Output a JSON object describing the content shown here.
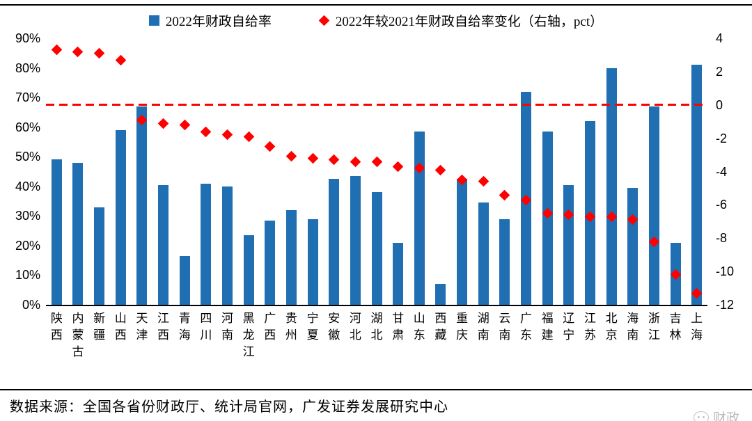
{
  "legend": {
    "bars": "2022年财政自给率",
    "diamonds": "2022年较2021年财政自给率变化（右轴，pct）"
  },
  "source_note": "数据来源：全国各省份财政厅、统计局官网，广发证券发展研究中心",
  "watermark": {
    "label": "财政"
  },
  "colors": {
    "bar": "#1F6FB2",
    "diamond": "#FF0000",
    "reference_line": "#FF0000",
    "axis_line": "#000000",
    "text": "#000000"
  },
  "chart_data": {
    "type": "bar",
    "title": "",
    "grid": false,
    "legend_position": "top",
    "categories": [
      "陕西",
      "内蒙古",
      "新疆",
      "山西",
      "天津",
      "江西",
      "青海",
      "四川",
      "河南",
      "黑龙江",
      "广西",
      "贵州",
      "宁夏",
      "安徽",
      "河北",
      "湖北",
      "甘肃",
      "山东",
      "西藏",
      "重庆",
      "湖南",
      "云南",
      "广东",
      "福建",
      "辽宁",
      "江苏",
      "北京",
      "海南",
      "浙江",
      "吉林",
      "上海"
    ],
    "series": [
      {
        "name": "2022年财政自给率",
        "type": "bar",
        "axis": "left",
        "unit": "%",
        "values": [
          49,
          48,
          33,
          59,
          67,
          40.5,
          16.5,
          41,
          40,
          23.5,
          28.5,
          32,
          29,
          42.5,
          43.5,
          38,
          21,
          58.5,
          7,
          42.5,
          34.5,
          29,
          72,
          58.5,
          40.5,
          62,
          80,
          39.5,
          67,
          21,
          81
        ]
      },
      {
        "name": "2022年较2021年财政自给率变化（右轴，pct）",
        "type": "scatter",
        "axis": "right",
        "unit": "pct",
        "values": [
          3.3,
          3.2,
          3.1,
          2.7,
          -0.9,
          -1.1,
          -1.2,
          -1.6,
          -1.8,
          -1.9,
          -2.5,
          -3.1,
          -3.2,
          -3.3,
          -3.4,
          -3.4,
          -3.7,
          -3.8,
          -3.9,
          -4.5,
          -4.6,
          -5.4,
          -5.7,
          -6.5,
          -6.6,
          -6.7,
          -6.7,
          -6.9,
          -8.2,
          -10.2,
          -11.3
        ]
      }
    ],
    "left_axis": {
      "min": 0,
      "max": 90,
      "ticks": [
        "90%",
        "80%",
        "70%",
        "60%",
        "50%",
        "40%",
        "30%",
        "20%",
        "10%",
        "0%"
      ]
    },
    "right_axis": {
      "min": -12,
      "max": 4,
      "ticks": [
        "4",
        "2",
        "0",
        "-2",
        "-4",
        "-6",
        "-8",
        "-10",
        "-12"
      ]
    },
    "reference_line": {
      "axis": "right",
      "value": 0,
      "style": "dashed",
      "color": "#FF0000"
    }
  }
}
